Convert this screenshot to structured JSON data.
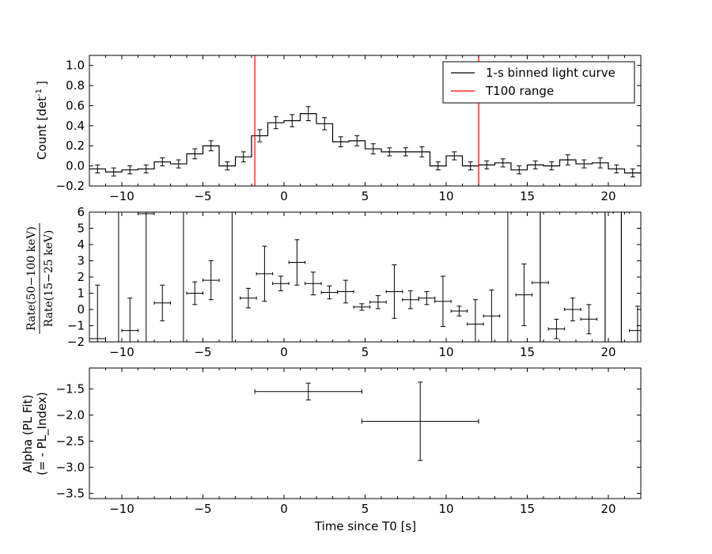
{
  "chart_data": [
    {
      "type": "line",
      "ylabel": "Count [det",
      "ylabel_sup": "-1",
      "ylabel_end": "]",
      "xlim": [
        -12,
        22
      ],
      "ylim": [
        -0.2,
        1.1
      ],
      "yticks": [
        -0.2,
        0.0,
        0.2,
        0.4,
        0.6,
        0.8,
        1.0
      ],
      "ytick_labels": [
        "−0.2",
        "0.0",
        "0.2",
        "0.4",
        "0.6",
        "0.8",
        "1.0"
      ],
      "xticks": [
        -10,
        -5,
        0,
        5,
        10,
        15,
        20
      ],
      "xtick_labels": [
        "−10",
        "−5",
        "0",
        "5",
        "10",
        "15",
        "20"
      ],
      "legend": {
        "placement": "top-right",
        "entries": [
          {
            "label": "1-s binned light curve",
            "color": "#000000"
          },
          {
            "label": "T100 range",
            "color": "#ff0000"
          }
        ]
      },
      "vlines": [
        -1.8,
        12.0
      ],
      "bin_edges": [
        -12,
        -11,
        -10,
        -9,
        -8,
        -7,
        -6,
        -5,
        -4,
        -3,
        -2,
        -1,
        0,
        1,
        2,
        3,
        4,
        5,
        6,
        7,
        8,
        9,
        10,
        11,
        12,
        13,
        14,
        15,
        16,
        17,
        18,
        19,
        20,
        21,
        22
      ],
      "values": [
        -0.03,
        -0.06,
        -0.04,
        -0.03,
        0.04,
        0.02,
        0.12,
        0.2,
        0.0,
        0.09,
        0.3,
        0.43,
        0.45,
        0.52,
        0.42,
        0.24,
        0.25,
        0.17,
        0.14,
        0.14,
        0.14,
        0.0,
        0.1,
        0.0,
        0.01,
        0.03,
        -0.04,
        0.01,
        0.0,
        0.06,
        0.02,
        0.03,
        -0.03,
        -0.07
      ],
      "errors": [
        0.04,
        0.04,
        0.04,
        0.04,
        0.04,
        0.04,
        0.05,
        0.05,
        0.04,
        0.05,
        0.06,
        0.06,
        0.06,
        0.07,
        0.06,
        0.05,
        0.05,
        0.05,
        0.04,
        0.04,
        0.05,
        0.04,
        0.04,
        0.04,
        0.04,
        0.04,
        0.04,
        0.04,
        0.04,
        0.05,
        0.04,
        0.05,
        0.04,
        0.04
      ]
    },
    {
      "type": "scatter",
      "ylabel_num": "Rate(50−100 keV)",
      "ylabel_den": "Rate(15−25 keV)",
      "xlim": [
        -12,
        22
      ],
      "ylim": [
        -2,
        6
      ],
      "yticks": [
        -2,
        -1,
        0,
        1,
        2,
        3,
        4,
        5,
        6
      ],
      "ytick_labels": [
        "−2",
        "−1",
        "0",
        "1",
        "2",
        "3",
        "4",
        "5",
        "6"
      ],
      "xticks": [
        -10,
        -5,
        0,
        5,
        10,
        15,
        20
      ],
      "xtick_labels": [
        "−10",
        "−5",
        "0",
        "5",
        "10",
        "15",
        "20"
      ],
      "points": [
        {
          "x": -11.5,
          "y": -1.8,
          "xerr": 0.5,
          "yerr": 3.3
        },
        {
          "x": -9.5,
          "y": -1.3,
          "xerr": 0.5,
          "yerr": 2.0
        },
        {
          "x": -8.5,
          "y": 5.9,
          "xerr": 0.5,
          "yerr": 8.5
        },
        {
          "x": -7.5,
          "y": 0.4,
          "xerr": 0.5,
          "yerr": 1.1
        },
        {
          "x": -5.5,
          "y": 1.0,
          "xerr": 0.5,
          "yerr": 0.7
        },
        {
          "x": -4.5,
          "y": 1.8,
          "xerr": 0.5,
          "yerr": 1.2
        },
        {
          "x": -2.2,
          "y": 0.7,
          "xerr": 0.5,
          "yerr": 0.6
        },
        {
          "x": -1.2,
          "y": 2.2,
          "xerr": 0.5,
          "yerr": 1.7
        },
        {
          "x": -0.2,
          "y": 1.6,
          "xerr": 0.5,
          "yerr": 0.45
        },
        {
          "x": 0.8,
          "y": 2.9,
          "xerr": 0.5,
          "yerr": 1.4
        },
        {
          "x": 1.8,
          "y": 1.6,
          "xerr": 0.5,
          "yerr": 0.7
        },
        {
          "x": 2.8,
          "y": 1.05,
          "xerr": 0.5,
          "yerr": 0.4
        },
        {
          "x": 3.8,
          "y": 1.1,
          "xerr": 0.5,
          "yerr": 0.7
        },
        {
          "x": 4.8,
          "y": 0.15,
          "xerr": 0.5,
          "yerr": 0.2
        },
        {
          "x": 5.8,
          "y": 0.45,
          "xerr": 0.5,
          "yerr": 0.4
        },
        {
          "x": 6.8,
          "y": 1.1,
          "xerr": 0.5,
          "yerr": 1.65
        },
        {
          "x": 7.8,
          "y": 0.6,
          "xerr": 0.5,
          "yerr": 0.55
        },
        {
          "x": 8.8,
          "y": 0.7,
          "xerr": 0.5,
          "yerr": 0.4
        },
        {
          "x": 9.8,
          "y": 0.5,
          "xerr": 0.5,
          "yerr": 1.55
        },
        {
          "x": 10.8,
          "y": -0.1,
          "xerr": 0.5,
          "yerr": 0.3
        },
        {
          "x": 11.8,
          "y": -0.9,
          "xerr": 0.5,
          "yerr": 1.5
        },
        {
          "x": 12.8,
          "y": -0.4,
          "xerr": 0.5,
          "yerr": 1.6
        },
        {
          "x": 14.8,
          "y": 0.9,
          "xerr": 0.5,
          "yerr": 1.9
        },
        {
          "x": 15.8,
          "y": 1.65,
          "xerr": 0.5,
          "yerr": 5.0
        },
        {
          "x": 16.8,
          "y": -1.2,
          "xerr": 0.5,
          "yerr": 0.6
        },
        {
          "x": 17.8,
          "y": 0.0,
          "xerr": 0.5,
          "yerr": 0.7
        },
        {
          "x": 18.8,
          "y": -0.6,
          "xerr": 0.5,
          "yerr": 0.9
        },
        {
          "x": 19.8,
          "y": 6.0,
          "xerr": 0.5,
          "yerr": 8.0
        },
        {
          "x": 20.8,
          "y": 6.0,
          "xerr": 0.5,
          "yerr": 8.0
        },
        {
          "x": 21.8,
          "y": -1.3,
          "xerr": 0.5,
          "yerr": 1.5
        }
      ],
      "vlines": [
        -10.2,
        -6.2,
        -3.2,
        13.8,
        15.8,
        19.8,
        20.8
      ]
    },
    {
      "type": "scatter",
      "ylabel_line1": "Alpha (PL Fit)",
      "ylabel_line2": "(= - PL_Index)",
      "xlabel": "Time since T0 [s]",
      "xlim": [
        -12,
        22
      ],
      "ylim": [
        -3.6,
        -1.1
      ],
      "yticks": [
        -3.5,
        -3.0,
        -2.5,
        -2.0,
        -1.5
      ],
      "ytick_labels": [
        "−3.5",
        "−3.0",
        "−2.5",
        "−2.0",
        "−1.5"
      ],
      "xticks": [
        -10,
        -5,
        0,
        5,
        10,
        15,
        20
      ],
      "xtick_labels": [
        "−10",
        "−5",
        "0",
        "5",
        "10",
        "15",
        "20"
      ],
      "points": [
        {
          "x": 1.5,
          "y": -1.55,
          "xlo": -1.8,
          "xhi": 4.8,
          "yerr": 0.16
        },
        {
          "x": 8.4,
          "y": -2.12,
          "xlo": 4.8,
          "xhi": 12.0,
          "yerr": 0.75
        }
      ]
    }
  ]
}
